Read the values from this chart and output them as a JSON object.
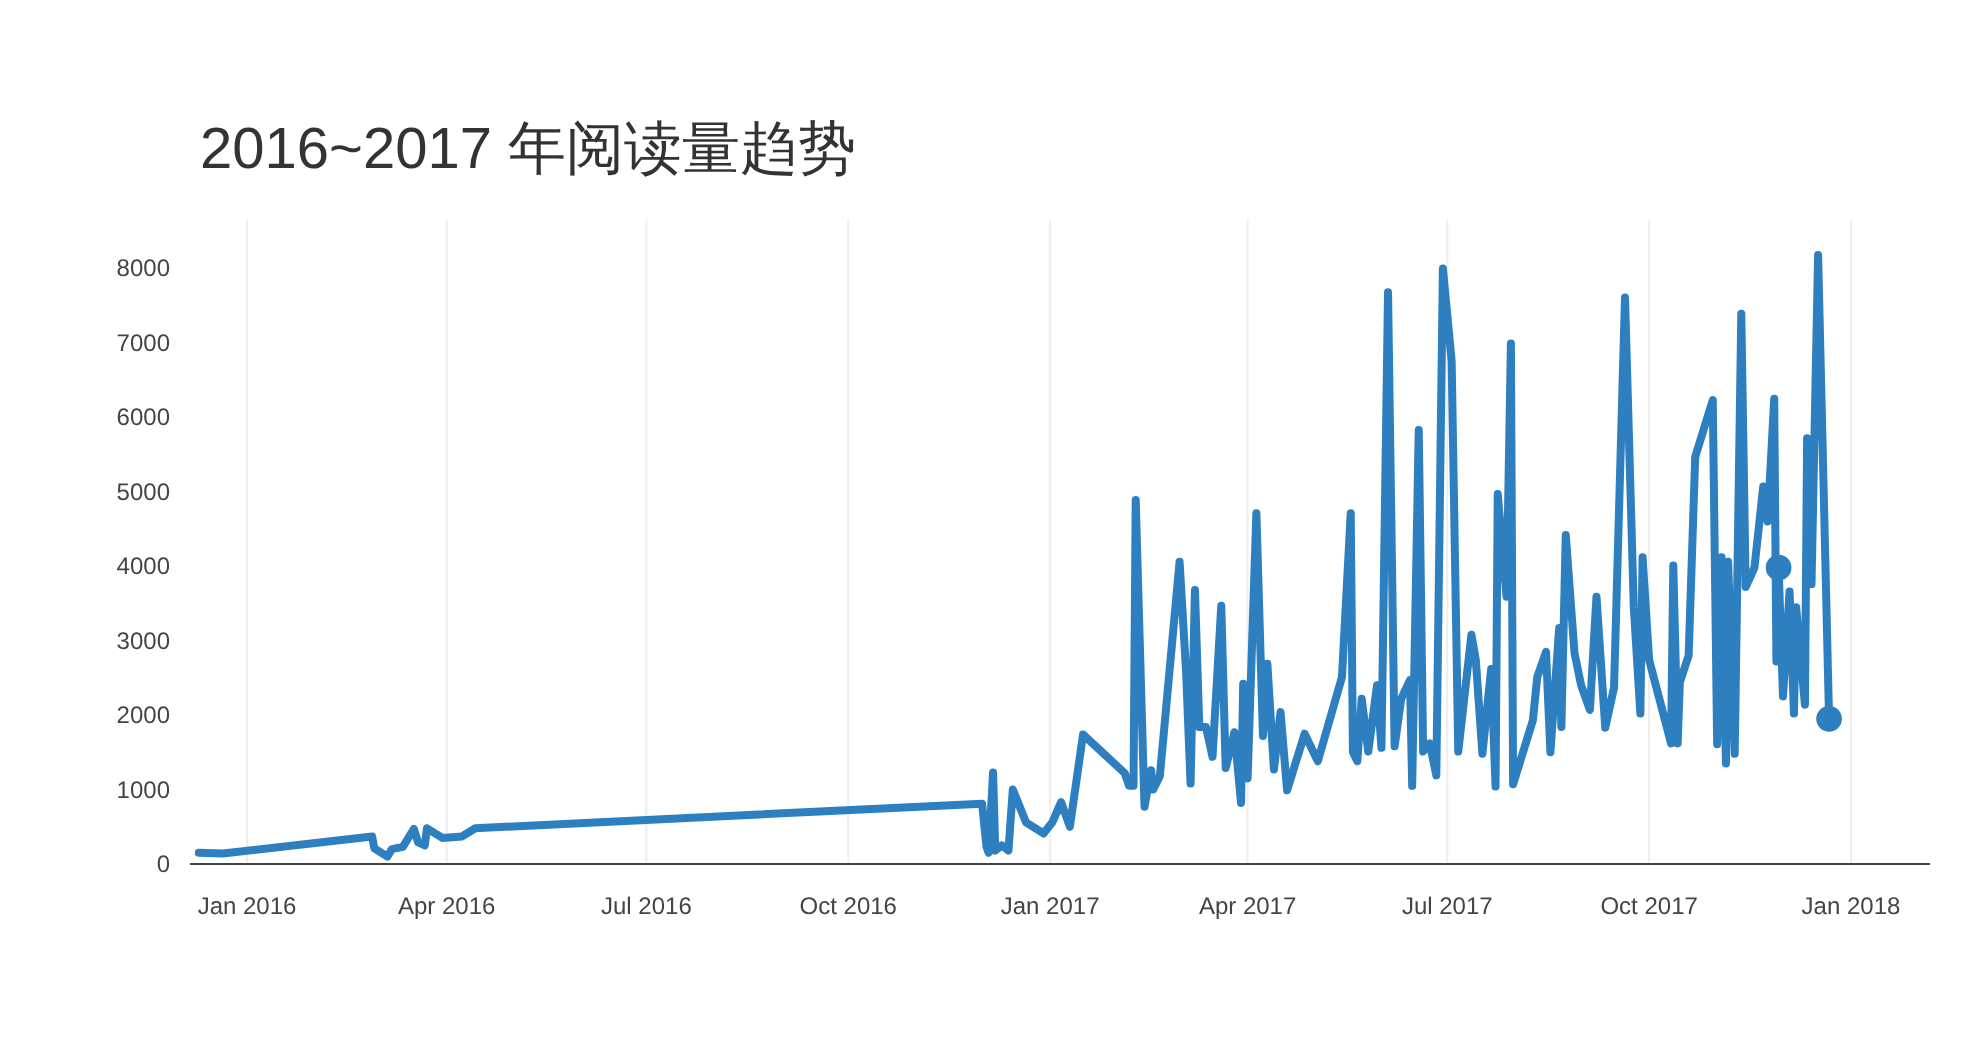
{
  "chart_data": {
    "type": "line",
    "title": "2016~2017 年阅读量趋势",
    "xlim": [
      "2015-12-06",
      "2018-02-06"
    ],
    "xticks": [
      {
        "value": "2016-01-01",
        "label": "Jan 2016"
      },
      {
        "value": "2016-04-01",
        "label": "Apr 2016"
      },
      {
        "value": "2016-07-01",
        "label": "Jul 2016"
      },
      {
        "value": "2016-10-01",
        "label": "Oct 2016"
      },
      {
        "value": "2017-01-01",
        "label": "Jan 2017"
      },
      {
        "value": "2017-04-01",
        "label": "Apr 2017"
      },
      {
        "value": "2017-07-01",
        "label": "Jul 2017"
      },
      {
        "value": "2017-10-01",
        "label": "Oct 2017"
      },
      {
        "value": "2018-01-01",
        "label": "Jan 2018"
      }
    ],
    "ylim": [
      0,
      8650
    ],
    "yticks": [
      0,
      1000,
      2000,
      3000,
      4000,
      5000,
      6000,
      7000,
      8000
    ],
    "grid": "x",
    "line_style": "solid",
    "marker": "none",
    "series": [
      {
        "color": "#2e7fbf",
        "x": [
          "2015-12-10",
          "2015-12-21",
          "2016-02-27",
          "2016-02-28",
          "2016-03-05",
          "2016-03-07",
          "2016-03-12",
          "2016-03-17",
          "2016-03-19",
          "2016-03-22",
          "2016-03-23",
          "2016-03-30",
          "2016-04-08",
          "2016-04-14",
          "2016-12-01",
          "2016-12-03",
          "2016-12-04",
          "2016-12-06",
          "2016-12-07",
          "2016-12-10",
          "2016-12-13",
          "2016-12-15",
          "2016-12-21",
          "2016-12-29",
          "2017-01-02",
          "2017-01-06",
          "2017-01-10",
          "2017-01-16",
          "2017-02-04",
          "2017-02-06",
          "2017-02-08",
          "2017-02-09",
          "2017-02-13",
          "2017-02-16",
          "2017-02-17",
          "2017-02-20",
          "2017-03-01",
          "2017-03-04",
          "2017-03-06",
          "2017-03-08",
          "2017-03-10",
          "2017-03-13",
          "2017-03-16",
          "2017-03-20",
          "2017-03-22",
          "2017-03-26",
          "2017-03-29",
          "2017-03-30",
          "2017-04-01",
          "2017-04-05",
          "2017-04-08",
          "2017-04-10",
          "2017-04-13",
          "2017-04-16",
          "2017-04-19",
          "2017-04-27",
          "2017-05-03",
          "2017-05-14",
          "2017-05-18",
          "2017-05-19",
          "2017-05-21",
          "2017-05-23",
          "2017-05-26",
          "2017-05-30",
          "2017-06-01",
          "2017-06-04",
          "2017-06-07",
          "2017-06-10",
          "2017-06-14",
          "2017-06-15",
          "2017-06-18",
          "2017-06-20",
          "2017-06-23",
          "2017-06-26",
          "2017-06-29",
          "2017-07-03",
          "2017-07-06",
          "2017-07-12",
          "2017-07-14",
          "2017-07-17",
          "2017-07-21",
          "2017-07-23",
          "2017-07-24",
          "2017-07-28",
          "2017-07-30",
          "2017-07-31",
          "2017-08-09",
          "2017-08-11",
          "2017-08-15",
          "2017-08-17",
          "2017-08-21",
          "2017-08-22",
          "2017-08-24",
          "2017-08-28",
          "2017-08-31",
          "2017-09-04",
          "2017-09-07",
          "2017-09-11",
          "2017-09-15",
          "2017-09-20",
          "2017-09-24",
          "2017-09-27",
          "2017-09-28",
          "2017-10-01",
          "2017-10-11",
          "2017-10-12",
          "2017-10-14",
          "2017-10-15",
          "2017-10-19",
          "2017-10-22",
          "2017-10-30",
          "2017-11-01",
          "2017-11-03",
          "2017-11-05",
          "2017-11-06",
          "2017-11-09",
          "2017-11-12",
          "2017-11-14",
          "2017-11-18",
          "2017-11-22",
          "2017-11-24",
          "2017-11-27",
          "2017-11-28",
          "2017-11-29",
          "2017-12-01",
          "2017-12-04",
          "2017-12-06",
          "2017-12-07",
          "2017-12-11",
          "2017-12-12",
          "2017-12-14",
          "2017-12-17",
          "2017-12-22"
        ],
        "values": [
          150,
          140,
          370,
          210,
          100,
          200,
          230,
          470,
          290,
          250,
          480,
          350,
          370,
          480,
          810,
          230,
          150,
          1230,
          180,
          250,
          180,
          1000,
          560,
          410,
          560,
          830,
          500,
          1740,
          1220,
          1050,
          1050,
          4890,
          770,
          1260,
          1000,
          1180,
          4060,
          2560,
          1080,
          3680,
          1840,
          1840,
          1440,
          3470,
          1290,
          1770,
          820,
          2420,
          1150,
          4710,
          1720,
          2690,
          1270,
          2040,
          990,
          1750,
          1380,
          2510,
          4710,
          1500,
          1380,
          2220,
          1510,
          2400,
          1560,
          7680,
          1580,
          2220,
          2470,
          1050,
          5830,
          1510,
          1620,
          1190,
          8000,
          6750,
          1510,
          3080,
          2740,
          1480,
          2620,
          1040,
          4970,
          3590,
          6990,
          1070,
          1930,
          2510,
          2850,
          1500,
          3170,
          1840,
          4420,
          2830,
          2400,
          2070,
          3590,
          1830,
          2370,
          7610,
          3450,
          2020,
          4120,
          2740,
          1620,
          4010,
          1620,
          2440,
          2800,
          5470,
          6230,
          1610,
          4120,
          1350,
          4060,
          1480,
          7390,
          3720,
          3980,
          5070,
          4600,
          6250,
          2720,
          3980,
          2250,
          3660,
          2020,
          3450,
          2140,
          5720,
          3760,
          8180,
          1950
        ]
      },
      {
        "type": "scatter",
        "color": "#2e7fbf",
        "marker": "circle",
        "x": [
          "2017-11-29",
          "2017-12-22"
        ],
        "values": [
          3980,
          1950
        ]
      }
    ]
  }
}
